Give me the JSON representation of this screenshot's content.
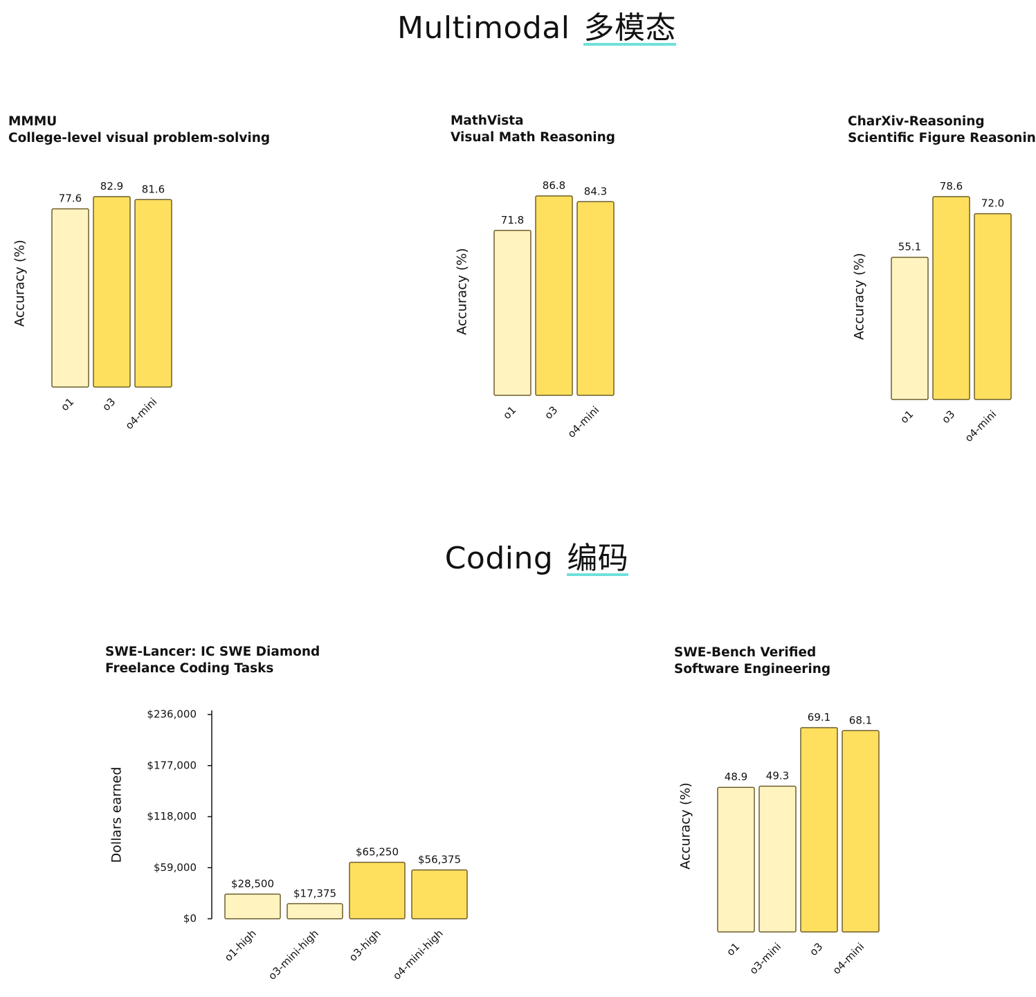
{
  "sections": {
    "multimodal": {
      "title": "Multimodal",
      "title_zh": "多模态"
    },
    "coding": {
      "title": "Coding",
      "title_zh": "编码"
    }
  },
  "colors": {
    "light_bar": "#fff4c0",
    "dark_bar": "#ffe05e",
    "bar_outline": "#6d5d2a",
    "underline": "#6fe0dc"
  },
  "chart_data": [
    {
      "id": "mmmu",
      "type": "bar",
      "title": "MMMU",
      "subtitle": "College-level visual problem-solving",
      "ylabel": "Accuracy (%)",
      "categories": [
        "o1",
        "o3",
        "o4-mini"
      ],
      "values": [
        77.6,
        82.9,
        81.6
      ],
      "labels": [
        "77.6",
        "82.9",
        "81.6"
      ],
      "styles": [
        "light",
        "dark",
        "dark"
      ],
      "ylim": [
        0,
        82.9
      ]
    },
    {
      "id": "mathvista",
      "type": "bar",
      "title": "MathVista",
      "subtitle": "Visual Math Reasoning",
      "ylabel": "Accuracy (%)",
      "categories": [
        "o1",
        "o3",
        "o4-mini"
      ],
      "values": [
        71.8,
        86.8,
        84.3
      ],
      "labels": [
        "71.8",
        "86.8",
        "84.3"
      ],
      "styles": [
        "light",
        "dark",
        "dark"
      ],
      "ylim": [
        0,
        86.8
      ]
    },
    {
      "id": "charxiv",
      "type": "bar",
      "title": "CharXiv-Reasoning",
      "subtitle": "Scientific Figure Reasoning",
      "ylabel": "Accuracy (%)",
      "categories": [
        "o1",
        "o3",
        "o4-mini"
      ],
      "values": [
        55.1,
        78.6,
        72.0
      ],
      "labels": [
        "55.1",
        "78.6",
        "72.0"
      ],
      "styles": [
        "light",
        "dark",
        "dark"
      ],
      "ylim": [
        0,
        78.6
      ]
    },
    {
      "id": "swe-lancer",
      "type": "bar",
      "title": "SWE-Lancer: IC SWE Diamond",
      "subtitle": "Freelance Coding Tasks",
      "ylabel": "Dollars earned",
      "categories": [
        "o1-high",
        "o3-mini-high",
        "o3-high",
        "o4-mini-high"
      ],
      "values": [
        28500,
        17375,
        65250,
        56375
      ],
      "labels": [
        "$28,500",
        "$17,375",
        "$65,250",
        "$56,375"
      ],
      "styles": [
        "light",
        "light",
        "dark",
        "dark"
      ],
      "ylim": [
        0,
        236000
      ],
      "yticks": [
        0,
        59000,
        118000,
        177000,
        236000
      ],
      "ytick_labels": [
        "$0",
        "$59,000",
        "$118,000",
        "$177,000",
        "$236,000"
      ]
    },
    {
      "id": "swe-bench",
      "type": "bar",
      "title": "SWE-Bench Verified",
      "subtitle": "Software Engineering",
      "ylabel": "Accuracy (%)",
      "categories": [
        "o1",
        "o3-mini",
        "o3",
        "o4-mini"
      ],
      "values": [
        48.9,
        49.3,
        69.1,
        68.1
      ],
      "labels": [
        "48.9",
        "49.3",
        "69.1",
        "68.1"
      ],
      "styles": [
        "light",
        "light",
        "dark",
        "dark"
      ],
      "ylim": [
        0,
        69.1
      ]
    }
  ]
}
